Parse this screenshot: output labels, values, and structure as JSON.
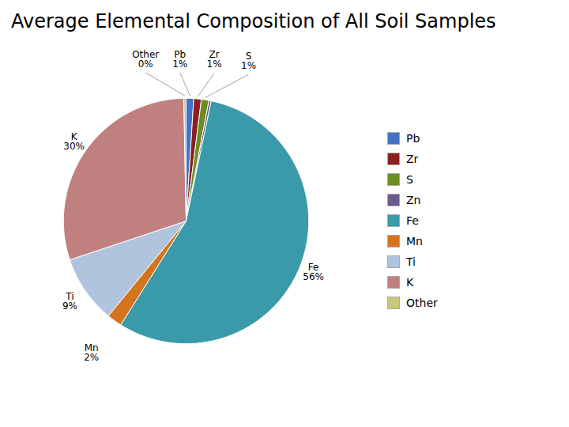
{
  "chart_data": {
    "type": "pie",
    "title": "Average Elemental Composition of All Soil Samples",
    "categories": [
      "Pb",
      "Zr",
      "S",
      "Zn",
      "Fe",
      "Mn",
      "Ti",
      "K",
      "Other"
    ],
    "values": [
      1,
      1,
      1,
      0.3,
      56,
      2,
      9,
      30,
      0.3
    ],
    "value_labels": [
      "1%",
      "1%",
      "1%",
      null,
      "56%",
      "2%",
      "9%",
      "30%",
      "0%"
    ],
    "colors": [
      "#4472c4",
      "#8b2020",
      "#6b8e23",
      "#6b5b8b",
      "#3a9aaa",
      "#d2751e",
      "#b0c4de",
      "#c08080",
      "#c8c87a"
    ],
    "data_labels": true,
    "legend": "right"
  }
}
